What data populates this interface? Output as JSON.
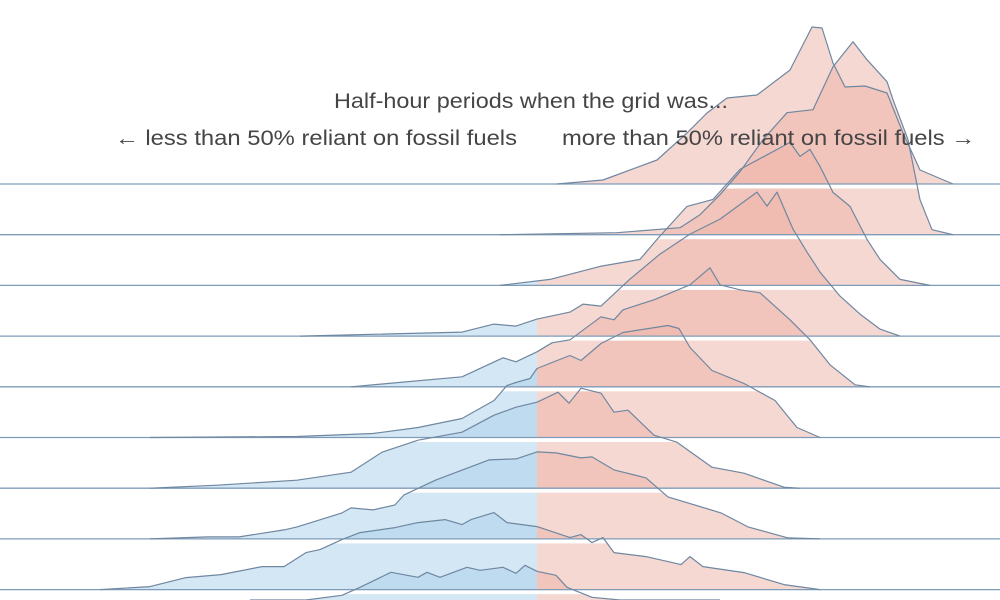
{
  "chart_data": {
    "type": "ridgeline",
    "title": "Half-hour periods when the grid was...",
    "annotations": {
      "left": "← less than 50% reliant on fossil fuels",
      "right": "more than 50% reliant on fossil fuels →"
    },
    "xlabel": "",
    "ylabel": "",
    "threshold": 50,
    "colors": {
      "below_threshold": "#a9d0ea",
      "above_threshold": "#eeb2a6",
      "stroke": "#6f87a0",
      "baseline": "#7f9bb8",
      "text": "#454545"
    },
    "grid": false,
    "series": [
      {
        "points": [
          [
            52.0,
            0
          ],
          [
            56.6,
            0.4
          ],
          [
            62.0,
            2.4
          ],
          [
            65.0,
            5.1
          ],
          [
            67.0,
            7.1
          ],
          [
            69.0,
            8.6
          ],
          [
            72.0,
            8.9
          ],
          [
            75.3,
            11.4
          ],
          [
            77.5,
            15.7
          ],
          [
            78.5,
            15.6
          ],
          [
            79.6,
            12.1
          ],
          [
            80.8,
            9.7
          ],
          [
            82.8,
            9.8
          ],
          [
            85.0,
            9.1
          ],
          [
            86.6,
            5.1
          ],
          [
            88.3,
            1.4
          ],
          [
            91.6,
            0
          ]
        ]
      },
      {
        "points": [
          [
            46.3,
            0
          ],
          [
            58.0,
            0.2
          ],
          [
            64.3,
            0.7
          ],
          [
            66.3,
            2.0
          ],
          [
            68.3,
            4.0
          ],
          [
            70.3,
            6.3
          ],
          [
            72.6,
            9.5
          ],
          [
            75.0,
            12.2
          ],
          [
            77.6,
            12.5
          ],
          [
            79.6,
            16.8
          ],
          [
            81.6,
            19.3
          ],
          [
            83.0,
            17.5
          ],
          [
            85.0,
            15.3
          ],
          [
            85.6,
            13.5
          ],
          [
            87.1,
            9.5
          ],
          [
            88.3,
            3.5
          ],
          [
            89.5,
            0.5
          ],
          [
            91.6,
            0
          ]
        ]
      },
      {
        "points": [
          [
            46.3,
            0
          ],
          [
            51.3,
            0.6
          ],
          [
            56.3,
            1.9
          ],
          [
            60.3,
            2.6
          ],
          [
            62.0,
            4.6
          ],
          [
            65.0,
            7.9
          ],
          [
            67.6,
            8.6
          ],
          [
            70.3,
            11.6
          ],
          [
            75.3,
            14.3
          ],
          [
            76.3,
            12.9
          ],
          [
            77.3,
            13.6
          ],
          [
            78.3,
            11.9
          ],
          [
            79.6,
            9.3
          ],
          [
            81.3,
            7.9
          ],
          [
            83.0,
            4.6
          ],
          [
            84.3,
            2.6
          ],
          [
            86.3,
            0.6
          ],
          [
            89.3,
            0
          ]
        ]
      },
      {
        "points": [
          [
            26.3,
            0
          ],
          [
            42.5,
            0.4
          ],
          [
            45.7,
            1.2
          ],
          [
            47.9,
            1.0
          ],
          [
            50.0,
            1.7
          ],
          [
            53.3,
            2.4
          ],
          [
            54.6,
            3.2
          ],
          [
            56.4,
            3.0
          ],
          [
            59.3,
            5.7
          ],
          [
            62.3,
            8.2
          ],
          [
            65.3,
            10.2
          ],
          [
            68.3,
            11.7
          ],
          [
            72.0,
            14.4
          ],
          [
            73.0,
            13.0
          ],
          [
            74.0,
            14.4
          ],
          [
            75.6,
            10.7
          ],
          [
            77.0,
            8.4
          ],
          [
            78.3,
            6.4
          ],
          [
            80.3,
            4.0
          ],
          [
            82.3,
            2.2
          ],
          [
            84.3,
            0.7
          ],
          [
            86.3,
            0
          ]
        ]
      },
      {
        "points": [
          [
            31.4,
            0
          ],
          [
            42.5,
            1.0
          ],
          [
            46.6,
            2.9
          ],
          [
            47.9,
            2.5
          ],
          [
            50.0,
            3.5
          ],
          [
            51.5,
            4.4
          ],
          [
            53.3,
            4.7
          ],
          [
            56.4,
            7.0
          ],
          [
            57.7,
            6.7
          ],
          [
            58.6,
            7.7
          ],
          [
            61.7,
            8.7
          ],
          [
            65.3,
            10.2
          ],
          [
            67.3,
            11.9
          ],
          [
            68.3,
            10.2
          ],
          [
            70.3,
            9.7
          ],
          [
            72.3,
            9.4
          ],
          [
            75.3,
            6.7
          ],
          [
            77.3,
            4.7
          ],
          [
            79.3,
            2.2
          ],
          [
            81.8,
            0.2
          ],
          [
            83.3,
            0
          ]
        ]
      },
      {
        "points": [
          [
            11.3,
            0
          ],
          [
            26.0,
            0.1
          ],
          [
            33.6,
            0.4
          ],
          [
            38.1,
            1.0
          ],
          [
            42.5,
            1.9
          ],
          [
            45.7,
            3.7
          ],
          [
            47.0,
            5.2
          ],
          [
            47.9,
            5.5
          ],
          [
            49.3,
            5.9
          ],
          [
            50.0,
            6.9
          ],
          [
            51.5,
            7.5
          ],
          [
            53.3,
            8.2
          ],
          [
            54.4,
            7.7
          ],
          [
            56.4,
            9.4
          ],
          [
            58.6,
            10.5
          ],
          [
            63.1,
            11.2
          ],
          [
            64.2,
            10.9
          ],
          [
            65.3,
            9.0
          ],
          [
            67.5,
            6.7
          ],
          [
            70.7,
            5.4
          ],
          [
            73.8,
            3.7
          ],
          [
            76.0,
            1.0
          ],
          [
            78.3,
            0
          ]
        ]
      },
      {
        "points": [
          [
            11.3,
            0
          ],
          [
            18.0,
            0.3
          ],
          [
            26.0,
            0.8
          ],
          [
            31.4,
            1.6
          ],
          [
            34.5,
            3.6
          ],
          [
            38.1,
            4.8
          ],
          [
            42.5,
            5.6
          ],
          [
            45.7,
            7.3
          ],
          [
            47.9,
            8.1
          ],
          [
            50.0,
            8.6
          ],
          [
            52.1,
            9.6
          ],
          [
            53.2,
            8.5
          ],
          [
            54.4,
            10.0
          ],
          [
            56.4,
            9.5
          ],
          [
            57.7,
            7.6
          ],
          [
            59.1,
            7.8
          ],
          [
            61.7,
            5.3
          ],
          [
            64.0,
            4.6
          ],
          [
            67.5,
            2.1
          ],
          [
            70.7,
            1.5
          ],
          [
            74.7,
            0.1
          ],
          [
            76.3,
            0
          ]
        ]
      },
      {
        "points": [
          [
            11.3,
            0
          ],
          [
            17.1,
            0.2
          ],
          [
            20.2,
            0.2
          ],
          [
            24.7,
            0.9
          ],
          [
            26.0,
            1.2
          ],
          [
            30.5,
            2.6
          ],
          [
            31.4,
            3.1
          ],
          [
            33.6,
            2.9
          ],
          [
            35.8,
            3.4
          ],
          [
            36.7,
            4.4
          ],
          [
            39.9,
            5.9
          ],
          [
            45.2,
            7.9
          ],
          [
            47.9,
            8.0
          ],
          [
            50.0,
            8.7
          ],
          [
            51.9,
            8.6
          ],
          [
            54.4,
            8.1
          ],
          [
            55.5,
            8.2
          ],
          [
            57.7,
            6.9
          ],
          [
            60.9,
            6.1
          ],
          [
            63.1,
            4.2
          ],
          [
            68.4,
            2.6
          ],
          [
            71.1,
            1.2
          ],
          [
            75.1,
            0.1
          ],
          [
            78.3,
            0
          ]
        ]
      },
      {
        "points": [
          [
            6.3,
            0
          ],
          [
            11.3,
            0.3
          ],
          [
            14.9,
            1.2
          ],
          [
            18.4,
            1.5
          ],
          [
            22.5,
            2.3
          ],
          [
            24.7,
            2.3
          ],
          [
            26.9,
            3.7
          ],
          [
            28.3,
            4.0
          ],
          [
            30.5,
            5.0
          ],
          [
            32.3,
            5.7
          ],
          [
            35.8,
            6.2
          ],
          [
            38.1,
            6.7
          ],
          [
            40.8,
            7.0
          ],
          [
            42.5,
            6.5
          ],
          [
            43.4,
            7.0
          ],
          [
            45.7,
            7.7
          ],
          [
            47.0,
            6.7
          ],
          [
            50.0,
            6.3
          ],
          [
            53.3,
            5.2
          ],
          [
            54.4,
            5.5
          ],
          [
            55.5,
            4.7
          ],
          [
            56.6,
            5.2
          ],
          [
            57.7,
            3.7
          ],
          [
            60.9,
            3.3
          ],
          [
            64.4,
            2.5
          ],
          [
            65.3,
            3.3
          ],
          [
            66.6,
            2.3
          ],
          [
            70.7,
            1.7
          ],
          [
            74.7,
            0.5
          ],
          [
            78.3,
            0
          ]
        ]
      },
      {
        "points": [
          [
            21.3,
            0
          ],
          [
            26.9,
            4.0
          ],
          [
            30.5,
            4.5
          ],
          [
            32.3,
            5.3
          ],
          [
            35.4,
            6.8
          ],
          [
            38.1,
            6.3
          ],
          [
            39.0,
            6.8
          ],
          [
            40.3,
            6.3
          ],
          [
            43.0,
            7.3
          ],
          [
            44.3,
            7.0
          ],
          [
            46.6,
            7.3
          ],
          [
            47.9,
            6.7
          ],
          [
            48.8,
            7.5
          ],
          [
            50.0,
            6.9
          ],
          [
            51.9,
            6.5
          ],
          [
            53.0,
            5.3
          ],
          [
            55.5,
            4.3
          ],
          [
            58.3,
            3.0
          ],
          [
            62.3,
            1.5
          ],
          [
            68.3,
            0
          ]
        ]
      }
    ]
  }
}
